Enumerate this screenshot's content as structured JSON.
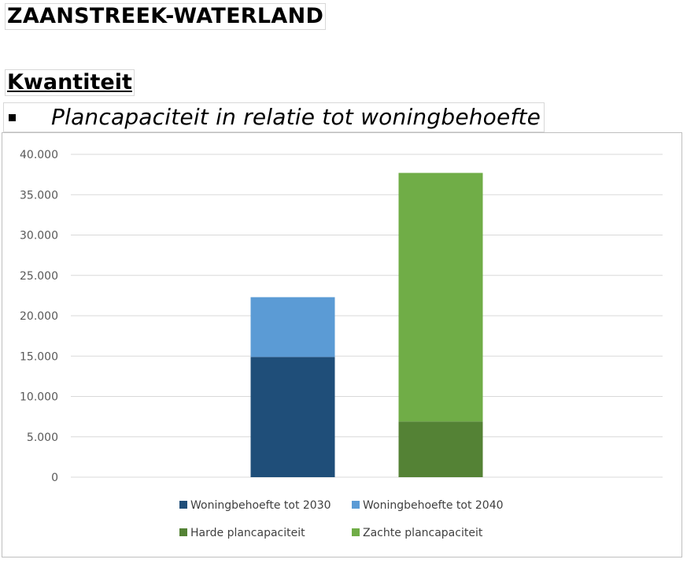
{
  "header": {
    "region": "ZAANSTREEK-WATERLAND",
    "section": "Kwantiteit",
    "subtitle": "Plancapaciteit in relatie tot woningbehoefte"
  },
  "chart_data": {
    "type": "bar",
    "stacked": true,
    "title": "",
    "xlabel": "",
    "ylabel": "",
    "ylim": [
      0,
      40000
    ],
    "y_ticks": [
      0,
      5000,
      10000,
      15000,
      20000,
      25000,
      30000,
      35000,
      40000
    ],
    "y_tick_labels": [
      "0",
      "5.000",
      "10.000",
      "15.000",
      "20.000",
      "25.000",
      "30.000",
      "35.000",
      "40.000"
    ],
    "grid": true,
    "legend_position": "bottom",
    "categories": [
      "",
      ""
    ],
    "series": [
      {
        "name": "Woningbehoefte tot 2030",
        "values": [
          14900,
          null
        ],
        "color": "#1f4e79"
      },
      {
        "name": "Woningbehoefte tot 2040",
        "values": [
          7400,
          null
        ],
        "color": "#5b9bd5"
      },
      {
        "name": "Harde plancapaciteit",
        "values": [
          null,
          6900
        ],
        "color": "#548235"
      },
      {
        "name": "Zachte plancapaciteit",
        "values": [
          null,
          30800
        ],
        "color": "#70ad47"
      }
    ]
  }
}
